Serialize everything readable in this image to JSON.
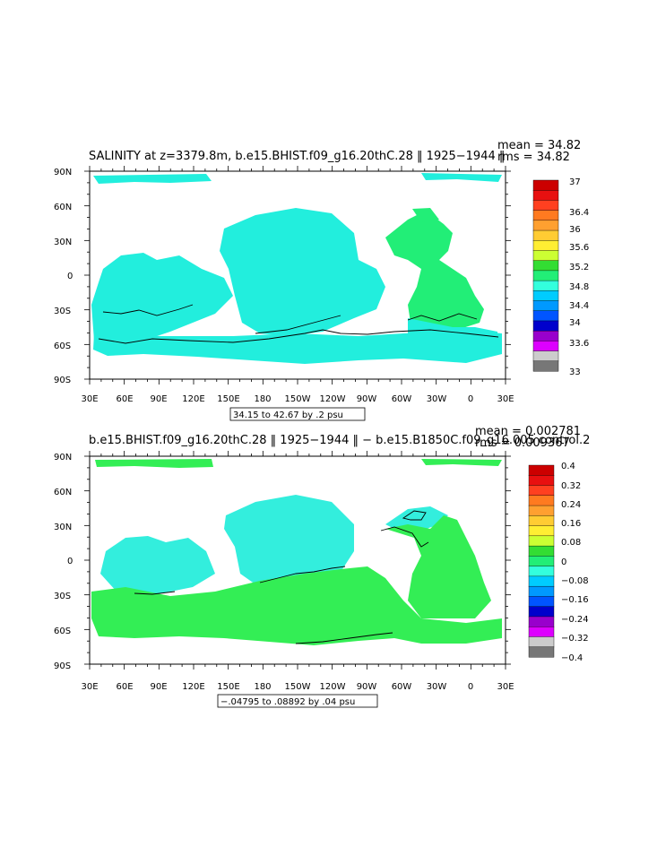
{
  "panels": [
    {
      "title": "SALINITY at z=3379.8m, b.e15.BHIST.f09_g16.20thC.28 ⁦1925−1944⁩",
      "title_display": "SALINITY at z=3379.8m, b.e15.BHIST.f09_g16.20thC.28 ‖ 1925−1944 ‖",
      "stats_mean": "mean = 34.82",
      "stats_rms": "rms = 34.82",
      "contour_note": "34.15 to 42.67 by .2 psu",
      "colorbar_labels": [
        "37",
        "36.4",
        "36",
        "35.6",
        "35.2",
        "34.8",
        "34.4",
        "34",
        "33.6",
        "33"
      ],
      "colorbar_colors": [
        "#cc0000",
        "#e81010",
        "#ff4020",
        "#ff7a20",
        "#ffa030",
        "#ffcc33",
        "#ffee33",
        "#ccff33",
        "#33dd33",
        "#22ee77",
        "#33ffdd",
        "#00ccff",
        "#0099ff",
        "#0055ff",
        "#0000cc",
        "#9900cc",
        "#dd00ff",
        "#cccccc",
        "#777777"
      ],
      "fill_primary": "#22ee77",
      "fill_secondary": "#22eedd"
    },
    {
      "title_display": "b.e15.BHIST.f09_g16.20thC.28 ‖ 1925−1944 ‖ − b.e15.B1850C.f09_g16.005 control.2",
      "stats_mean": "mean = 0.002781",
      "stats_rms": "rms = 0.009367",
      "contour_note": "−.04795 to .08892 by .04 psu",
      "colorbar_labels": [
        "0.4",
        "0.32",
        "0.24",
        "0.16",
        "0.08",
        "0",
        "−0.08",
        "−0.16",
        "−0.24",
        "−0.32",
        "−0.4"
      ],
      "colorbar_colors": [
        "#cc0000",
        "#e81010",
        "#ff4020",
        "#ff7a20",
        "#ffa030",
        "#ffcc33",
        "#ffee33",
        "#ccff33",
        "#33dd33",
        "#22ee77",
        "#33ffdd",
        "#00ccff",
        "#0099ff",
        "#0055ff",
        "#0000cc",
        "#9900cc",
        "#dd00ff",
        "#cccccc",
        "#777777"
      ],
      "fill_primary": "#33ee55",
      "fill_secondary": "#33eedd"
    }
  ],
  "lat_labels": [
    "90N",
    "60N",
    "30N",
    "0",
    "30S",
    "60S",
    "90S"
  ],
  "lon_labels": [
    "30E",
    "60E",
    "90E",
    "120E",
    "150E",
    "180",
    "150W",
    "120W",
    "90W",
    "60W",
    "30W",
    "0",
    "30E"
  ]
}
